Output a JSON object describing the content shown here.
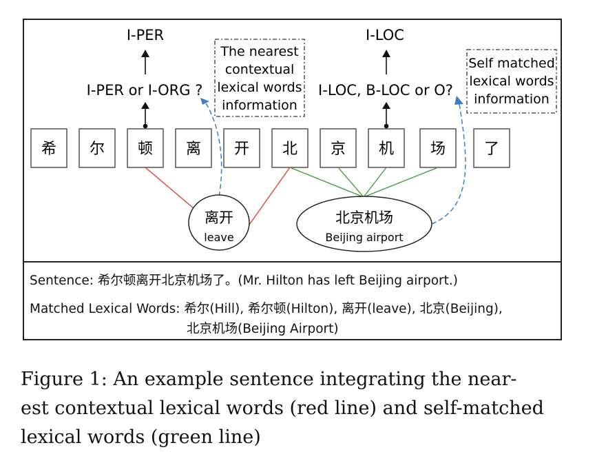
{
  "characters": [
    "希",
    "尔",
    "顿",
    "离",
    "开",
    "北",
    "京",
    "机",
    "场",
    "了"
  ],
  "labels": {
    "top_left": "I-PER",
    "mid_left": "I-PER or I-ORG ?",
    "top_right": "I-LOC",
    "mid_right": "I-LOC, B-LOC or O?"
  },
  "notes": {
    "nearest": [
      "The nearest",
      "contextual",
      "lexical words",
      "information"
    ],
    "self_matched": [
      "Self matched",
      "lexical words",
      "information"
    ]
  },
  "words": {
    "leave": {
      "zh": "离开",
      "en": "leave"
    },
    "airport": {
      "zh": "北京机场",
      "en": "Beijing airport"
    }
  },
  "sentence": {
    "label": "Sentence:",
    "text": "希尔顿离开北京机场了。(Mr. Hilton has left Beijing airport.)"
  },
  "matched": {
    "label": "Matched Lexical Words:",
    "line1": "希尔(Hill), 希尔顿(Hilton), 离开(leave), 北京(Beijing),",
    "line2": "北京机场(Beijing Airport)"
  },
  "caption": {
    "lines": [
      "Figure 1:  An example sentence integrating the near-",
      "est contextual lexical words (red line) and self-matched",
      "lexical words (green line)"
    ]
  },
  "colors": {
    "red_line": "#e0392b",
    "green_line": "#3a9a3a",
    "blue_dashed": "#3a7fc4"
  }
}
